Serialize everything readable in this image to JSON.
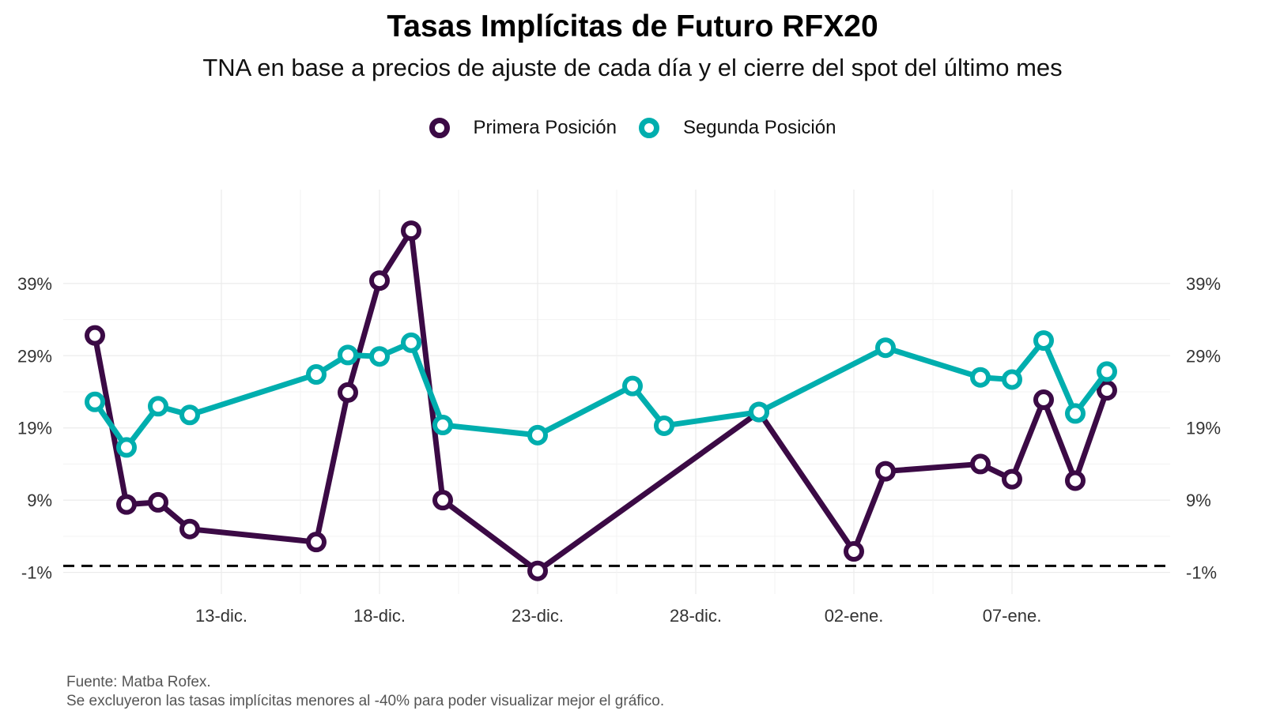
{
  "chart_data": {
    "type": "line",
    "title": "Tasas Implícitas de Futuro RFX20",
    "subtitle": "TNA en base a precios de ajuste de cada día y el cierre del spot del último mes",
    "xlabel": "",
    "ylabel": "",
    "x_ticks": [
      "13-dic.",
      "18-dic.",
      "23-dic.",
      "28-dic.",
      "02-ene.",
      "07-ene."
    ],
    "y_ticks": [
      "-1%",
      "9%",
      "19%",
      "29%",
      "39%"
    ],
    "ylim": [
      -4,
      52
    ],
    "xlim": [
      "2024-12-08",
      "2025-01-12"
    ],
    "grid": true,
    "legend_position": "top",
    "reference_line": {
      "y": -0.1,
      "style": "dashed",
      "color": "#000000"
    },
    "series": [
      {
        "name": "Primera Posición",
        "color": "#3b0a45",
        "points": [
          {
            "x": "2024-12-09",
            "y": 31.8
          },
          {
            "x": "2024-12-10",
            "y": 8.4
          },
          {
            "x": "2024-12-11",
            "y": 8.7
          },
          {
            "x": "2024-12-12",
            "y": 5.0
          },
          {
            "x": "2024-12-16",
            "y": 3.2
          },
          {
            "x": "2024-12-17",
            "y": 23.9
          },
          {
            "x": "2024-12-18",
            "y": 39.4
          },
          {
            "x": "2024-12-19",
            "y": 46.3
          },
          {
            "x": "2024-12-20",
            "y": 9.0
          },
          {
            "x": "2024-12-23",
            "y": -0.8
          },
          {
            "x": "2024-12-30",
            "y": 21.2
          },
          {
            "x": "2025-01-02",
            "y": 1.9
          },
          {
            "x": "2025-01-03",
            "y": 13.0
          },
          {
            "x": "2025-01-06",
            "y": 14.0
          },
          {
            "x": "2025-01-07",
            "y": 11.9
          },
          {
            "x": "2025-01-08",
            "y": 22.9
          },
          {
            "x": "2025-01-09",
            "y": 11.7
          },
          {
            "x": "2025-01-10",
            "y": 24.2
          }
        ]
      },
      {
        "name": "Segunda Posición",
        "color": "#00aeae",
        "points": [
          {
            "x": "2024-12-09",
            "y": 22.6
          },
          {
            "x": "2024-12-10",
            "y": 16.3
          },
          {
            "x": "2024-12-11",
            "y": 22.0
          },
          {
            "x": "2024-12-12",
            "y": 20.8
          },
          {
            "x": "2024-12-16",
            "y": 26.4
          },
          {
            "x": "2024-12-17",
            "y": 29.1
          },
          {
            "x": "2024-12-18",
            "y": 28.9
          },
          {
            "x": "2024-12-19",
            "y": 30.8
          },
          {
            "x": "2024-12-20",
            "y": 19.4
          },
          {
            "x": "2024-12-23",
            "y": 18.0
          },
          {
            "x": "2024-12-26",
            "y": 24.8
          },
          {
            "x": "2024-12-27",
            "y": 19.3
          },
          {
            "x": "2024-12-30",
            "y": 21.2
          },
          {
            "x": "2025-01-03",
            "y": 30.1
          },
          {
            "x": "2025-01-06",
            "y": 26.0
          },
          {
            "x": "2025-01-07",
            "y": 25.7
          },
          {
            "x": "2025-01-08",
            "y": 31.1
          },
          {
            "x": "2025-01-09",
            "y": 21.0
          },
          {
            "x": "2025-01-10",
            "y": 26.8
          }
        ]
      }
    ],
    "caption": [
      "Fuente: Matba Rofex.",
      "Se excluyeron las tasas implícitas menores al -40% para poder visualizar mejor el gráfico."
    ]
  }
}
